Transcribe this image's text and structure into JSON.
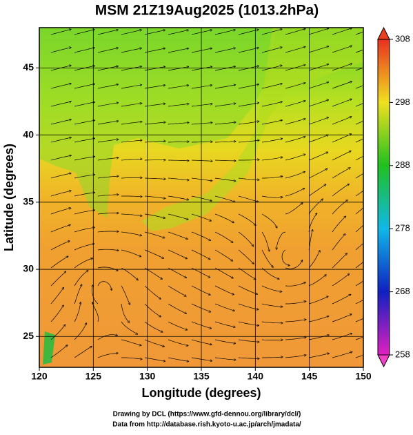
{
  "chart_data": {
    "type": "map",
    "title": "MSM 21Z19Aug2025 (1013.2hPa)",
    "xlabel": "Longitude (degrees)",
    "ylabel": "Latitude  (degrees)",
    "xlim": [
      120,
      150
    ],
    "ylim": [
      22.7,
      48
    ],
    "xticks": [
      120,
      125,
      130,
      135,
      140,
      145,
      150
    ],
    "yticks": [
      25,
      30,
      35,
      40,
      45
    ],
    "grid": true,
    "colorbar_lim": [
      258,
      308
    ],
    "colorbar_ticks": [
      258,
      268,
      278,
      288,
      298,
      308
    ],
    "credits": [
      "Drawing by DCL (https://www.gfd-dennou.org/library/dcl/)",
      "Data from http://database.rish.kyoto-u.ac.jp/arch/jmadata/"
    ]
  }
}
